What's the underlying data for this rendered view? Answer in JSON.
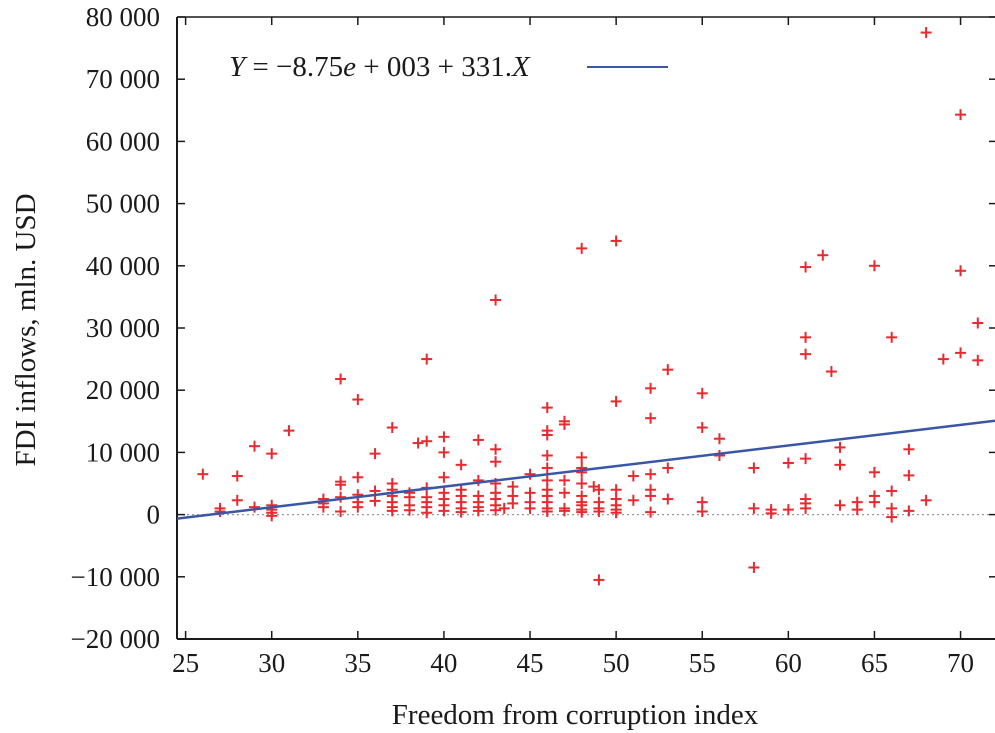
{
  "chart_data": {
    "type": "scatter",
    "title": "",
    "xlabel": "Freedom from corruption index",
    "ylabel": "FDI inflows, mln. USD",
    "xlim": [
      24.5,
      72
    ],
    "ylim": [
      -20000,
      80000
    ],
    "x_ticks": [
      25,
      30,
      35,
      40,
      45,
      50,
      55,
      60,
      65,
      70
    ],
    "x_tick_labels": [
      "25",
      "30",
      "35",
      "40",
      "45",
      "50",
      "55",
      "60",
      "65",
      "70"
    ],
    "y_ticks": [
      -20000,
      -10000,
      0,
      10000,
      20000,
      30000,
      40000,
      50000,
      60000,
      70000,
      80000
    ],
    "y_tick_labels": [
      "−20 000",
      "−10 000",
      "0",
      "10 000",
      "20 000",
      "30 000",
      "40 000",
      "50 000",
      "60 000",
      "70 000",
      "80 000"
    ],
    "grid": false,
    "zero_line": true,
    "legend_position": "top-left",
    "series": [
      {
        "kind": "points",
        "color": "#e8292e",
        "marker": "plus",
        "points": [
          [
            26,
            6500
          ],
          [
            27,
            1000
          ],
          [
            27,
            500
          ],
          [
            28,
            6200
          ],
          [
            28,
            2300
          ],
          [
            29,
            11000
          ],
          [
            29,
            1200
          ],
          [
            30,
            9800
          ],
          [
            30,
            1500
          ],
          [
            30,
            800
          ],
          [
            30,
            300
          ],
          [
            30,
            -200
          ],
          [
            31,
            13500
          ],
          [
            33,
            2500
          ],
          [
            33,
            1800
          ],
          [
            33,
            1200
          ],
          [
            34,
            21800
          ],
          [
            34,
            5300
          ],
          [
            34,
            4800
          ],
          [
            34,
            2800
          ],
          [
            34,
            500
          ],
          [
            35,
            18500
          ],
          [
            35,
            6000
          ],
          [
            35,
            3200
          ],
          [
            35,
            2000
          ],
          [
            35,
            1200
          ],
          [
            36,
            9800
          ],
          [
            36,
            3800
          ],
          [
            36,
            2200
          ],
          [
            37,
            14000
          ],
          [
            37,
            5000
          ],
          [
            37,
            4000
          ],
          [
            37,
            3000
          ],
          [
            37,
            2000
          ],
          [
            37,
            1200
          ],
          [
            37,
            600
          ],
          [
            38,
            3500
          ],
          [
            38,
            2800
          ],
          [
            38,
            1500
          ],
          [
            38,
            700
          ],
          [
            39,
            25000
          ],
          [
            39,
            11800
          ],
          [
            38.5,
            11500
          ],
          [
            39,
            4300
          ],
          [
            39,
            2800
          ],
          [
            39,
            2000
          ],
          [
            39,
            1200
          ],
          [
            39,
            300
          ],
          [
            40,
            12500
          ],
          [
            40,
            10000
          ],
          [
            40,
            6000
          ],
          [
            40,
            3500
          ],
          [
            40,
            2500
          ],
          [
            40,
            1500
          ],
          [
            40,
            600
          ],
          [
            41,
            8000
          ],
          [
            41,
            4000
          ],
          [
            41,
            3000
          ],
          [
            41,
            2000
          ],
          [
            41,
            1000
          ],
          [
            41,
            400
          ],
          [
            42,
            12000
          ],
          [
            42,
            5500
          ],
          [
            42,
            3000
          ],
          [
            42,
            2000
          ],
          [
            42,
            1200
          ],
          [
            42,
            600
          ],
          [
            43,
            34500
          ],
          [
            43,
            10500
          ],
          [
            43,
            8500
          ],
          [
            43,
            5000
          ],
          [
            43,
            3500
          ],
          [
            43,
            2500
          ],
          [
            43,
            1500
          ],
          [
            43,
            700
          ],
          [
            43.5,
            1000
          ],
          [
            44,
            4500
          ],
          [
            44,
            3000
          ],
          [
            44,
            1800
          ],
          [
            45,
            6500
          ],
          [
            45,
            3500
          ],
          [
            45,
            2000
          ],
          [
            45,
            1000
          ],
          [
            46,
            17200
          ],
          [
            46,
            13500
          ],
          [
            46,
            12800
          ],
          [
            46,
            9500
          ],
          [
            46,
            7500
          ],
          [
            46,
            5500
          ],
          [
            46,
            4000
          ],
          [
            46,
            3000
          ],
          [
            46,
            2000
          ],
          [
            46,
            1000
          ],
          [
            46,
            500
          ],
          [
            47,
            15000
          ],
          [
            47,
            14500
          ],
          [
            47,
            5500
          ],
          [
            47,
            3500
          ],
          [
            47,
            1000
          ],
          [
            47,
            600
          ],
          [
            48,
            42800
          ],
          [
            48,
            9200
          ],
          [
            48,
            7500
          ],
          [
            48,
            6800
          ],
          [
            48,
            5000
          ],
          [
            48,
            3000
          ],
          [
            48,
            2000
          ],
          [
            48,
            1500
          ],
          [
            48,
            800
          ],
          [
            48,
            400
          ],
          [
            48.7,
            4500
          ],
          [
            49,
            4000
          ],
          [
            49,
            2000
          ],
          [
            49,
            1000
          ],
          [
            49,
            500
          ],
          [
            49,
            -10500
          ],
          [
            50,
            44000
          ],
          [
            50,
            18200
          ],
          [
            50,
            4000
          ],
          [
            50,
            2500
          ],
          [
            50,
            1500
          ],
          [
            50,
            800
          ],
          [
            50,
            300
          ],
          [
            51,
            6200
          ],
          [
            51,
            2300
          ],
          [
            52,
            20300
          ],
          [
            52,
            15500
          ],
          [
            52,
            6500
          ],
          [
            52,
            4000
          ],
          [
            52,
            3000
          ],
          [
            52,
            400
          ],
          [
            53,
            23300
          ],
          [
            53,
            7500
          ],
          [
            53,
            2500
          ],
          [
            55,
            19500
          ],
          [
            55,
            14000
          ],
          [
            55,
            2000
          ],
          [
            55,
            500
          ],
          [
            56,
            12200
          ],
          [
            56,
            9500
          ],
          [
            58,
            7500
          ],
          [
            58,
            1000
          ],
          [
            58,
            -8500
          ],
          [
            59,
            800
          ],
          [
            59,
            200
          ],
          [
            60,
            8300
          ],
          [
            60,
            800
          ],
          [
            61,
            39800
          ],
          [
            61,
            28500
          ],
          [
            61,
            25800
          ],
          [
            61,
            9000
          ],
          [
            61,
            2500
          ],
          [
            61,
            1800
          ],
          [
            61,
            1000
          ],
          [
            62,
            41700
          ],
          [
            62.5,
            23000
          ],
          [
            63,
            10800
          ],
          [
            63,
            8000
          ],
          [
            63,
            1500
          ],
          [
            64,
            2000
          ],
          [
            64,
            800
          ],
          [
            65,
            40000
          ],
          [
            65,
            6800
          ],
          [
            65,
            3000
          ],
          [
            65,
            2000
          ],
          [
            66,
            28500
          ],
          [
            66,
            3800
          ],
          [
            66,
            1000
          ],
          [
            66,
            -400
          ],
          [
            67,
            10500
          ],
          [
            67,
            6300
          ],
          [
            67,
            600
          ],
          [
            68,
            77500
          ],
          [
            68,
            2300
          ],
          [
            69,
            25000
          ],
          [
            70,
            64300
          ],
          [
            70,
            39200
          ],
          [
            70,
            26000
          ],
          [
            71,
            30800
          ],
          [
            71,
            24800
          ]
        ]
      },
      {
        "kind": "line",
        "name": "Y = −8.75e + 003 + 331.X",
        "color": "#3a56a6",
        "intercept": -8750,
        "slope": 331
      }
    ]
  },
  "legend": {
    "y_italic": "Y",
    "eq_part1": " = −8.75",
    "e_italic": "e",
    "eq_part2": " + 003 + 331.",
    "x_italic": "X"
  }
}
